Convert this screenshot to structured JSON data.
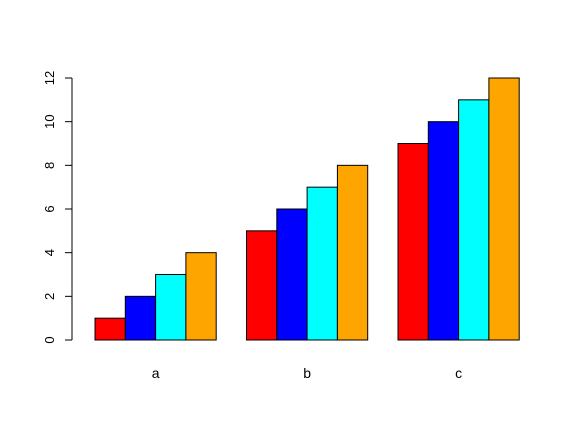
{
  "chart_data": {
    "type": "bar",
    "mode": "grouped",
    "categories": [
      "a",
      "b",
      "c"
    ],
    "series": [
      {
        "values": [
          1,
          5,
          9
        ],
        "color": "#ff0000"
      },
      {
        "values": [
          2,
          6,
          10
        ],
        "color": "#0000ff"
      },
      {
        "values": [
          3,
          7,
          11
        ],
        "color": "#00ffff"
      },
      {
        "values": [
          4,
          8,
          12
        ],
        "color": "#ffa500"
      }
    ],
    "title": "",
    "xlabel": "",
    "ylabel": "",
    "ylim": [
      0,
      12
    ],
    "yticks": [
      0,
      2,
      4,
      6,
      8,
      10,
      12
    ],
    "grid": false,
    "legend": "none"
  }
}
